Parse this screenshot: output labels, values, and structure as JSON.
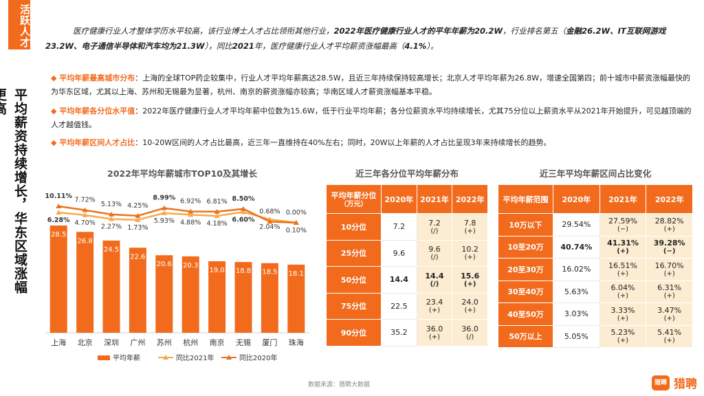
{
  "side_tag": "活跃人才",
  "side_title": "平均薪资持续增长，华东区域涨幅更高",
  "intro_parts": [
    "医疗健康行业人才整体学历水平较高，该行业博士人才占比领衔其他行业，",
    "2022年医疗健康行业人才的平年年薪为20.2W",
    "，行业排名第五（",
    "金融26.2W、IT互联网游戏23.2W、电子通信半导体和汽车均为21.3W",
    "），同比",
    "2021",
    "年，医疗健康行业人才平均薪资涨幅最高（",
    "4.1%",
    "）。"
  ],
  "bullets": [
    {
      "head": "平均年薪最高城市分布",
      "text": "：上海的全球TOP药企较集中，行业人才平均年薪高达28.5W，且近三年持续保持较高增长；北京人才平均年薪为26.8W，增速全国第四；前十城市中薪资涨幅最快的为华东区域，尤其以上海、苏州和无锡最为显著，杭州、南京的薪资涨幅亦较高；华南区域人才薪资涨幅基本平稳。"
    },
    {
      "head": "平均年薪各分位水平值",
      "text": "：2022年医疗健康行业人才平均年薪中位数为15.6W，低于行业平均年薪；各分位薪资水平均持续增长，尤其75分位以上薪资水平从2021年开始提升，可见越顶端的人才越值钱。"
    },
    {
      "head": "平均年薪区间人才占比",
      "text": "：10-20W区间的人才占比最高，近三年一直维持在40%左右；同时，20W以上年薪的人才占比呈现3年来持续增长的趋势。"
    }
  ],
  "chart_data": {
    "type": "bar",
    "title": "2022年平均年薪城市TOP10及其增长",
    "categories": [
      "上海",
      "北京",
      "深圳",
      "广州",
      "苏州",
      "杭州",
      "南京",
      "无锡",
      "厦门",
      "珠海"
    ],
    "series": [
      {
        "name": "平均年薪",
        "type": "bar",
        "values": [
          28.5,
          26.8,
          24.5,
          22.6,
          20.6,
          20.3,
          19.0,
          18.8,
          18.5,
          18.1
        ],
        "labels": [
          "28.5",
          "26.8",
          "24.5",
          "22.6",
          "20.6",
          "20.3",
          "19.0",
          "18.8",
          "18.5",
          "18.1"
        ]
      },
      {
        "name": "同比2021年",
        "type": "line",
        "values": [
          6.28,
          4.7,
          2.27,
          1.73,
          5.93,
          4.88,
          4.18,
          6.6,
          2.04,
          0.1
        ],
        "labels": [
          "6.28%",
          "4.70%",
          "2.27%",
          "1.73%",
          "5.93%",
          "4.88%",
          "4.18%",
          "6.60%",
          "2.04%",
          "0.10%"
        ]
      },
      {
        "name": "同比2020年",
        "type": "line",
        "values": [
          10.11,
          7.72,
          5.13,
          4.25,
          8.99,
          6.92,
          6.81,
          8.5,
          0.68,
          0.0
        ],
        "labels": [
          "10.11%",
          "7.72%",
          "5.13%",
          "4.25%",
          "8.99%",
          "6.92%",
          "6.81%",
          "8.50%",
          "0.68%",
          "0.00%"
        ]
      }
    ],
    "bold_labels": [
      "6.28%",
      "8.99%",
      "8.50%",
      "6.60%",
      "10.11%"
    ],
    "colors": {
      "bar": "#f26b1d",
      "line2021": "#f9a94b",
      "line2020": "#e8731f"
    },
    "legend_position": "bottom"
  },
  "table1": {
    "title": "近三年各分位平均年薪分布",
    "header": [
      "平均年薪分位",
      "（万元）",
      "2020年",
      "2021年",
      "2022年"
    ],
    "rows": [
      {
        "label": "10分位",
        "v2020": "7.2",
        "v2021": "7.2",
        "s2021": "(/)",
        "v2022": "7.8",
        "s2022": "(+)"
      },
      {
        "label": "25分位",
        "v2020": "9.6",
        "v2021": "9.6",
        "s2021": "(/)",
        "v2022": "10.2",
        "s2022": "(+)"
      },
      {
        "label": "50分位",
        "v2020": "14.4",
        "v2021": "14.4",
        "s2021": "(/)",
        "v2022": "15.6",
        "s2022": "(+)"
      },
      {
        "label": "75分位",
        "v2020": "22.5",
        "v2021": "23.4",
        "s2021": "(+)",
        "v2022": "24.0",
        "s2022": "(+)"
      },
      {
        "label": "90分位",
        "v2020": "35.2",
        "v2021": "36.0",
        "s2021": "(+)",
        "v2022": "36.0",
        "s2022": "(/)"
      }
    ]
  },
  "table2": {
    "title": "近三年平均年薪区间占比变化",
    "header": [
      "平均年薪范围",
      "2020年",
      "2021年",
      "2022年"
    ],
    "rows": [
      {
        "label": "10万以下",
        "v2020": "29.54%",
        "v2021": "27.59%",
        "s2021": "(−)",
        "v2022": "28.82%",
        "s2022": "(+)"
      },
      {
        "label": "10至20万",
        "v2020": "40.74%",
        "v2021": "41.31%",
        "s2021": "(+)",
        "v2022": "39.28%",
        "s2022": "(−)"
      },
      {
        "label": "20至30万",
        "v2020": "16.02%",
        "v2021": "16.51%",
        "s2021": "(+)",
        "v2022": "16.70%",
        "s2022": "(+)"
      },
      {
        "label": "30至40万",
        "v2020": "5.63%",
        "v2021": "6.04%",
        "s2021": "(+)",
        "v2022": "6.31%",
        "s2022": "(+)"
      },
      {
        "label": "40至50万",
        "v2020": "3.03%",
        "v2021": "3.33%",
        "s2021": "(+)",
        "v2022": "3.47%",
        "s2022": "(+)"
      },
      {
        "label": "50万以上",
        "v2020": "5.05%",
        "v2021": "5.23%",
        "s2021": "(+)",
        "v2022": "5.41%",
        "s2022": "(+)"
      }
    ]
  },
  "footer": {
    "source": "数据来源：猎聘大数据",
    "logo_icon_text": "猎聘",
    "logo_text": "猎聘"
  }
}
